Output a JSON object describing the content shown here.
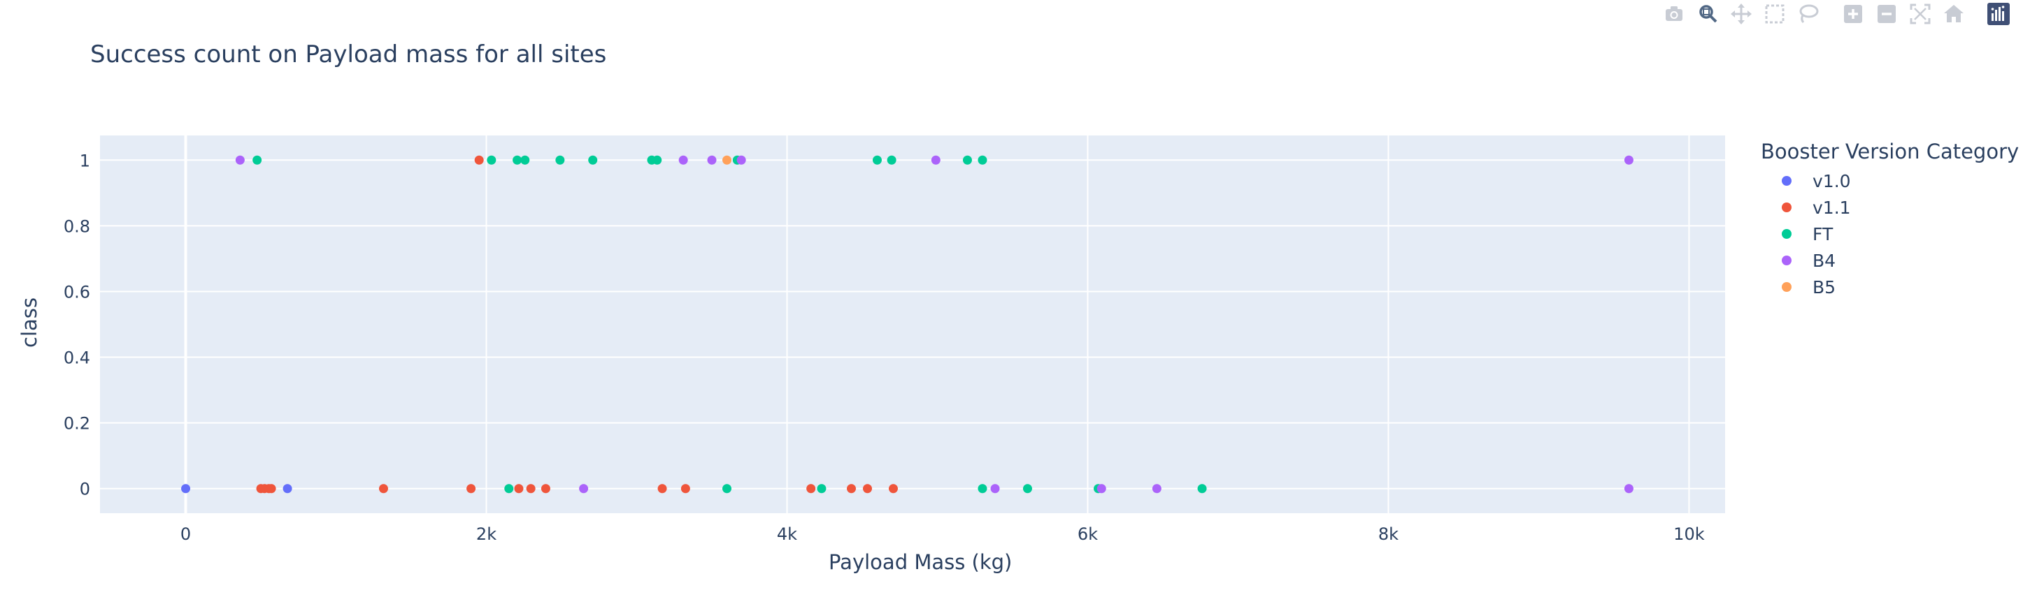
{
  "toolbar": {
    "buttons": [
      {
        "name": "camera-icon",
        "label": "Download plot as a png"
      },
      {
        "name": "zoom-icon",
        "label": "Zoom"
      },
      {
        "name": "pan-icon",
        "label": "Pan"
      },
      {
        "name": "box-select-icon",
        "label": "Box Select"
      },
      {
        "name": "lasso-select-icon",
        "label": "Lasso Select"
      },
      {
        "name": "zoom-in-icon",
        "label": "Zoom in"
      },
      {
        "name": "zoom-out-icon",
        "label": "Zoom out"
      },
      {
        "name": "autoscale-icon",
        "label": "Autoscale"
      },
      {
        "name": "reset-axes-icon",
        "label": "Reset axes"
      },
      {
        "name": "plotly-logo-icon",
        "label": "Produced with Plotly"
      }
    ],
    "colors": {
      "icon": "#c8ccd4",
      "active": "#506784",
      "logo_bg": "#3f4f75"
    }
  },
  "chart_data": {
    "type": "scatter",
    "title": "Success count on Payload mass for all sites",
    "xlabel": "Payload Mass (kg)",
    "ylabel": "class",
    "xlim": [
      -570,
      10240
    ],
    "ylim": [
      -0.075,
      1.075
    ],
    "xticks": [
      {
        "value": 0,
        "label": "0"
      },
      {
        "value": 2000,
        "label": "2k"
      },
      {
        "value": 4000,
        "label": "4k"
      },
      {
        "value": 6000,
        "label": "6k"
      },
      {
        "value": 8000,
        "label": "8k"
      },
      {
        "value": 10000,
        "label": "10k"
      }
    ],
    "yticks": [
      {
        "value": 0,
        "label": "0"
      },
      {
        "value": 0.2,
        "label": "0.2"
      },
      {
        "value": 0.4,
        "label": "0.4"
      },
      {
        "value": 0.6,
        "label": "0.6"
      },
      {
        "value": 0.8,
        "label": "0.8"
      },
      {
        "value": 1,
        "label": "1"
      }
    ],
    "grid": true,
    "plot_bgcolor": "#e5ecf6",
    "legend": {
      "title": "Booster Version Category",
      "placement": "right"
    },
    "series": [
      {
        "name": "v1.0",
        "color": "#636efa",
        "x": [
          0,
          677
        ],
        "y": [
          0,
          0
        ]
      },
      {
        "name": "v1.1",
        "color": "#ef553b",
        "x": [
          500,
          525,
          553,
          570,
          1316,
          1898,
          2216,
          2296,
          2395,
          3170,
          3325,
          4159,
          4428,
          4535,
          4707,
          1952
        ],
        "y": [
          0,
          0,
          0,
          0,
          0,
          0,
          0,
          0,
          0,
          0,
          0,
          0,
          0,
          0,
          0,
          1
        ]
      },
      {
        "name": "FT",
        "color": "#00cc96",
        "x": [
          475,
          2034,
          2205,
          2257,
          2490,
          2708,
          3100,
          3136,
          3669,
          4600,
          4696,
          5200,
          5300,
          2150,
          3600,
          4230,
          5300,
          5600,
          6070,
          6761
        ],
        "y": [
          1,
          1,
          1,
          1,
          1,
          1,
          1,
          1,
          1,
          1,
          1,
          1,
          1,
          0,
          0,
          0,
          0,
          0,
          0,
          0
        ]
      },
      {
        "name": "B4",
        "color": "#ab63fa",
        "x": [
          362,
          3310,
          3500,
          3696,
          4990,
          9600,
          2647,
          5384,
          6092,
          6460,
          9600
        ],
        "y": [
          1,
          1,
          1,
          1,
          1,
          1,
          0,
          0,
          0,
          0,
          0
        ]
      },
      {
        "name": "B5",
        "color": "#ffa15a",
        "x": [
          3600
        ],
        "y": [
          1
        ]
      }
    ]
  }
}
